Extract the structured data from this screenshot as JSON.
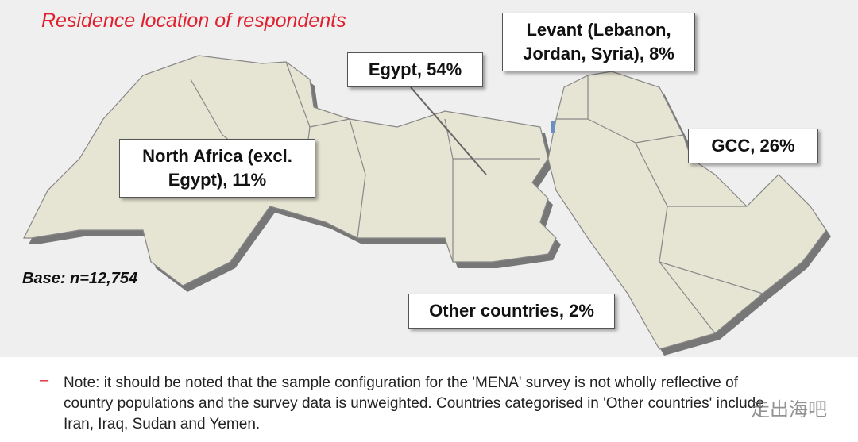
{
  "title": "Residence location of respondents",
  "labels": {
    "egypt": "Egypt, 54%",
    "levant": "Levant (Lebanon, Jordan, Syria), 8%",
    "gcc": "GCC, 26%",
    "north_africa": "North Africa (excl. Egypt), 11%",
    "other": "Other countries, 2%"
  },
  "base": "Base: n=12,754",
  "note": {
    "bullet": "–",
    "text": "Note: it should be noted that the sample configuration for the 'MENA' survey is not wholly reflective of country populations and the survey data is unweighted. Countries categorised in 'Other countries' include Iran, Iraq, Sudan and Yemen."
  },
  "watermark": "走出海吧"
}
